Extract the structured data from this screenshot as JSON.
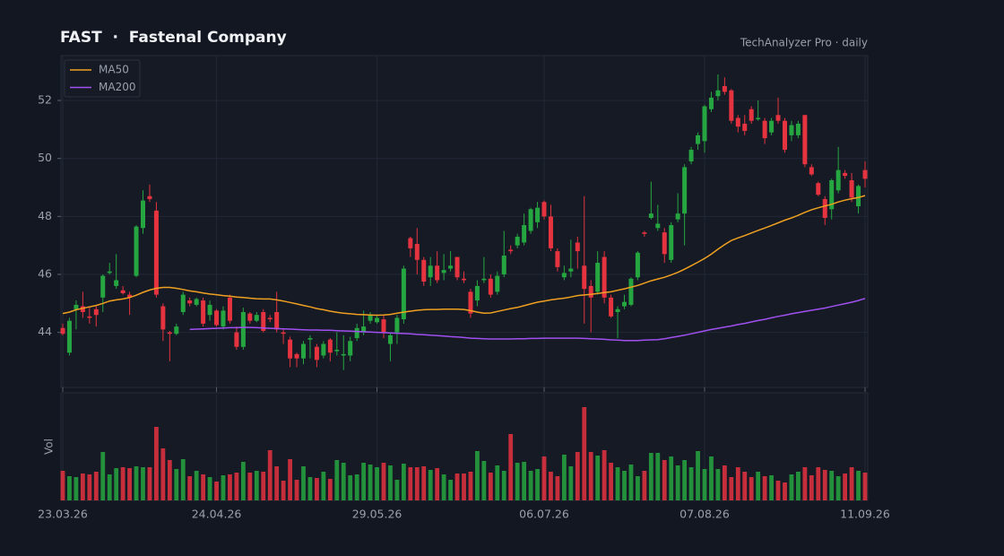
{
  "chart_data": {
    "type": "candlestick",
    "title": "FAST  ·  Fastenal Company",
    "subtitle": "TechAnalyzer Pro · daily",
    "categories": [
      "23.03.26",
      null,
      null,
      null,
      null,
      null,
      null,
      null,
      null,
      null,
      null,
      null,
      null,
      null,
      null,
      null,
      null,
      null,
      null,
      null,
      null,
      null,
      null,
      "24.04.26",
      null,
      null,
      null,
      null,
      null,
      null,
      null,
      null,
      null,
      null,
      null,
      null,
      null,
      null,
      null,
      null,
      null,
      null,
      null,
      null,
      null,
      null,
      null,
      "29.05.26",
      null,
      null,
      null,
      null,
      null,
      null,
      null,
      null,
      null,
      null,
      null,
      null,
      null,
      null,
      null,
      null,
      null,
      null,
      null,
      null,
      null,
      null,
      null,
      null,
      "06.07.26",
      null,
      null,
      null,
      null,
      null,
      null,
      null,
      null,
      null,
      null,
      null,
      null,
      null,
      null,
      null,
      null,
      null,
      null,
      null,
      null,
      null,
      null,
      null,
      "07.08.26",
      null,
      null,
      null,
      null,
      null,
      null,
      null,
      null,
      null,
      null,
      null,
      null,
      null,
      null,
      null,
      null,
      null,
      null,
      null,
      null,
      null,
      null,
      null,
      "11.09.26"
    ],
    "ohlc": [
      [
        44.15,
        44.3,
        43.9,
        43.95
      ],
      [
        43.3,
        44.5,
        43.2,
        44.4
      ],
      [
        44.8,
        45.1,
        44.1,
        44.95
      ],
      [
        44.9,
        45.4,
        44.5,
        44.7
      ],
      [
        44.55,
        44.9,
        44.3,
        44.5
      ],
      [
        44.8,
        44.9,
        44.2,
        44.6
      ],
      [
        45.2,
        46.0,
        44.7,
        45.95
      ],
      [
        46.05,
        46.4,
        46.0,
        46.1
      ],
      [
        45.6,
        46.7,
        45.5,
        45.8
      ],
      [
        45.45,
        45.6,
        45.3,
        45.35
      ],
      [
        45.3,
        45.4,
        44.6,
        45.2
      ],
      [
        45.95,
        47.7,
        45.9,
        47.65
      ],
      [
        47.6,
        48.9,
        47.4,
        48.55
      ],
      [
        48.7,
        49.1,
        48.5,
        48.6
      ],
      [
        48.2,
        48.5,
        45.2,
        45.3
      ],
      [
        44.9,
        45.0,
        43.7,
        44.1
      ],
      [
        44.0,
        44.05,
        43.0,
        43.95
      ],
      [
        43.95,
        44.3,
        43.9,
        44.2
      ],
      [
        44.7,
        45.4,
        44.6,
        45.3
      ],
      [
        45.1,
        45.2,
        44.9,
        45.0
      ],
      [
        44.95,
        45.2,
        44.9,
        45.15
      ],
      [
        45.1,
        45.2,
        44.2,
        44.3
      ],
      [
        44.6,
        45.1,
        44.4,
        44.95
      ],
      [
        44.75,
        44.8,
        44.2,
        44.25
      ],
      [
        44.2,
        44.9,
        44.1,
        44.75
      ],
      [
        45.2,
        45.3,
        44.3,
        44.4
      ],
      [
        44.0,
        44.2,
        43.4,
        43.5
      ],
      [
        43.5,
        44.85,
        43.4,
        44.7
      ],
      [
        44.65,
        44.7,
        44.3,
        44.4
      ],
      [
        44.4,
        44.7,
        44.35,
        44.6
      ],
      [
        44.7,
        44.8,
        44.0,
        44.05
      ],
      [
        44.5,
        44.6,
        44.35,
        44.45
      ],
      [
        44.7,
        45.4,
        44.0,
        44.1
      ],
      [
        44.0,
        44.1,
        43.6,
        43.95
      ],
      [
        43.75,
        43.85,
        42.8,
        43.1
      ],
      [
        43.25,
        43.3,
        42.8,
        43.1
      ],
      [
        43.1,
        43.7,
        42.9,
        43.6
      ],
      [
        43.75,
        43.9,
        43.1,
        43.8
      ],
      [
        43.5,
        43.6,
        42.8,
        43.05
      ],
      [
        43.2,
        43.7,
        43.1,
        43.6
      ],
      [
        43.75,
        43.8,
        43.0,
        43.3
      ],
      [
        43.35,
        44.0,
        43.2,
        43.4
      ],
      [
        43.2,
        43.9,
        42.7,
        43.25
      ],
      [
        43.2,
        43.85,
        43.0,
        43.7
      ],
      [
        43.8,
        44.3,
        43.7,
        44.15
      ],
      [
        44.0,
        44.75,
        43.9,
        44.2
      ],
      [
        44.4,
        44.7,
        44.3,
        44.6
      ],
      [
        44.35,
        44.6,
        44.3,
        44.5
      ],
      [
        44.45,
        44.6,
        43.8,
        44.0
      ],
      [
        43.6,
        44.0,
        43.0,
        43.9
      ],
      [
        44.0,
        44.6,
        43.6,
        44.5
      ],
      [
        44.45,
        46.3,
        44.3,
        46.2
      ],
      [
        47.25,
        47.3,
        46.6,
        46.9
      ],
      [
        47.05,
        47.6,
        46.0,
        46.5
      ],
      [
        46.5,
        46.6,
        45.6,
        45.75
      ],
      [
        45.9,
        46.6,
        45.6,
        46.3
      ],
      [
        46.3,
        46.8,
        45.7,
        45.8
      ],
      [
        46.05,
        46.7,
        45.8,
        46.15
      ],
      [
        46.2,
        46.8,
        46.1,
        46.3
      ],
      [
        46.6,
        46.6,
        45.8,
        45.9
      ],
      [
        45.85,
        46.1,
        45.7,
        45.8
      ],
      [
        45.4,
        45.5,
        44.5,
        44.65
      ],
      [
        45.1,
        45.8,
        44.9,
        45.6
      ],
      [
        45.8,
        46.6,
        45.7,
        45.85
      ],
      [
        45.85,
        46.0,
        45.2,
        45.3
      ],
      [
        45.4,
        46.1,
        45.3,
        45.95
      ],
      [
        46.0,
        47.5,
        45.9,
        46.65
      ],
      [
        46.85,
        47.0,
        46.7,
        46.8
      ],
      [
        47.0,
        47.4,
        46.9,
        47.3
      ],
      [
        47.1,
        48.1,
        47.0,
        47.7
      ],
      [
        47.5,
        48.3,
        47.4,
        48.25
      ],
      [
        47.8,
        48.5,
        47.6,
        48.3
      ],
      [
        48.5,
        48.55,
        47.9,
        48.0
      ],
      [
        48.0,
        48.4,
        46.8,
        46.9
      ],
      [
        46.8,
        46.9,
        46.1,
        46.25
      ],
      [
        45.9,
        46.3,
        45.8,
        46.05
      ],
      [
        46.1,
        47.2,
        45.9,
        46.2
      ],
      [
        47.1,
        47.3,
        46.2,
        46.8
      ],
      [
        46.3,
        48.7,
        44.3,
        45.5
      ],
      [
        45.6,
        45.8,
        44.0,
        45.2
      ],
      [
        45.4,
        46.8,
        45.3,
        46.4
      ],
      [
        46.6,
        46.8,
        45.0,
        45.2
      ],
      [
        45.2,
        45.3,
        44.5,
        44.55
      ],
      [
        44.7,
        44.9,
        43.8,
        44.8
      ],
      [
        44.9,
        45.3,
        44.8,
        45.05
      ],
      [
        44.95,
        45.9,
        44.9,
        45.85
      ],
      [
        45.9,
        46.8,
        45.8,
        46.75
      ],
      [
        47.45,
        47.5,
        47.3,
        47.4
      ],
      [
        47.95,
        49.2,
        47.9,
        48.1
      ],
      [
        47.6,
        48.4,
        47.5,
        47.75
      ],
      [
        47.45,
        47.6,
        46.4,
        46.7
      ],
      [
        46.5,
        47.8,
        46.4,
        47.7
      ],
      [
        47.9,
        48.8,
        47.8,
        48.1
      ],
      [
        48.1,
        49.8,
        47.0,
        49.7
      ],
      [
        49.9,
        50.4,
        49.8,
        50.3
      ],
      [
        50.5,
        50.9,
        50.3,
        50.8
      ],
      [
        50.6,
        51.85,
        50.2,
        51.8
      ],
      [
        51.7,
        52.3,
        51.6,
        52.1
      ],
      [
        52.15,
        52.9,
        52.0,
        52.35
      ],
      [
        52.5,
        52.8,
        52.2,
        52.3
      ],
      [
        52.35,
        52.4,
        51.2,
        51.3
      ],
      [
        51.4,
        51.5,
        50.9,
        51.1
      ],
      [
        51.2,
        51.5,
        50.8,
        50.95
      ],
      [
        51.7,
        51.8,
        51.2,
        51.3
      ],
      [
        51.35,
        52.0,
        51.3,
        51.4
      ],
      [
        51.3,
        51.4,
        50.5,
        50.7
      ],
      [
        50.9,
        51.4,
        50.8,
        51.3
      ],
      [
        51.5,
        52.1,
        51.2,
        51.3
      ],
      [
        51.3,
        51.4,
        50.2,
        50.3
      ],
      [
        50.8,
        51.3,
        50.6,
        51.15
      ],
      [
        50.8,
        51.3,
        50.7,
        51.2
      ],
      [
        51.5,
        51.5,
        49.7,
        49.8
      ],
      [
        49.7,
        49.8,
        49.4,
        49.45
      ],
      [
        49.15,
        49.2,
        48.7,
        48.75
      ],
      [
        48.6,
        48.7,
        47.7,
        47.95
      ],
      [
        48.25,
        49.3,
        47.9,
        49.25
      ],
      [
        48.9,
        50.4,
        48.8,
        49.6
      ],
      [
        49.5,
        49.6,
        49.3,
        49.4
      ],
      [
        49.25,
        49.5,
        48.5,
        48.65
      ],
      [
        48.35,
        49.1,
        48.1,
        49.05
      ],
      [
        49.6,
        49.9,
        49.0,
        49.3
      ]
    ],
    "up_color": "#26a641",
    "down_color": "#e5333f",
    "ylim": [
      42.1,
      53.55
    ],
    "yticks": [
      44,
      46,
      48,
      50,
      52
    ],
    "grid": true,
    "legend": "upper left",
    "series": [
      {
        "name": "MA50",
        "color": "#f0a020",
        "values": [
          44.65,
          44.7,
          44.78,
          44.83,
          44.88,
          44.93,
          45.0,
          45.08,
          45.12,
          45.15,
          45.2,
          45.28,
          45.38,
          45.46,
          45.52,
          45.55,
          45.55,
          45.52,
          45.48,
          45.43,
          45.4,
          45.36,
          45.32,
          45.3,
          45.27,
          45.25,
          45.22,
          45.2,
          45.18,
          45.16,
          45.15,
          45.15,
          45.12,
          45.08,
          45.03,
          44.98,
          44.93,
          44.88,
          44.82,
          44.78,
          44.73,
          44.69,
          44.66,
          44.64,
          44.62,
          44.61,
          44.6,
          44.59,
          44.6,
          44.62,
          44.66,
          44.7,
          44.73,
          44.76,
          44.78,
          44.79,
          44.79,
          44.8,
          44.8,
          44.8,
          44.79,
          44.75,
          44.7,
          44.66,
          44.67,
          44.72,
          44.77,
          44.82,
          44.86,
          44.92,
          44.98,
          45.04,
          45.08,
          45.12,
          45.15,
          45.18,
          45.22,
          45.27,
          45.29,
          45.31,
          45.34,
          45.37,
          45.4,
          45.45,
          45.5,
          45.56,
          45.62,
          45.7,
          45.78,
          45.84,
          45.9,
          45.98,
          46.07,
          46.18,
          46.3,
          46.42,
          46.55,
          46.7,
          46.87,
          47.03,
          47.17,
          47.26,
          47.34,
          47.43,
          47.52,
          47.6,
          47.69,
          47.78,
          47.87,
          47.95,
          48.04,
          48.14,
          48.23,
          48.3,
          48.36,
          48.42,
          48.5,
          48.56,
          48.61,
          48.65,
          48.72
        ]
      },
      {
        "name": "MA200",
        "color": "#a050f0",
        "values": [
          null,
          null,
          null,
          null,
          null,
          null,
          null,
          null,
          null,
          null,
          null,
          null,
          null,
          null,
          null,
          null,
          null,
          null,
          null,
          44.1,
          44.11,
          44.12,
          44.13,
          44.14,
          44.15,
          44.16,
          44.16,
          44.17,
          44.17,
          44.16,
          44.15,
          44.14,
          44.13,
          44.12,
          44.11,
          44.1,
          44.09,
          44.08,
          44.08,
          44.07,
          44.07,
          44.06,
          44.05,
          44.04,
          44.03,
          44.02,
          44.01,
          44.0,
          43.99,
          43.98,
          43.97,
          43.96,
          43.95,
          43.93,
          43.92,
          43.9,
          43.89,
          43.87,
          43.85,
          43.84,
          43.82,
          43.8,
          43.79,
          43.78,
          43.77,
          43.77,
          43.77,
          43.77,
          43.78,
          43.78,
          43.79,
          43.79,
          43.8,
          43.8,
          43.8,
          43.8,
          43.8,
          43.8,
          43.79,
          43.78,
          43.77,
          43.76,
          43.74,
          43.73,
          43.72,
          43.72,
          43.72,
          43.73,
          43.74,
          43.75,
          43.78,
          43.82,
          43.86,
          43.9,
          43.95,
          44.0,
          44.05,
          44.1,
          44.14,
          44.18,
          44.22,
          44.27,
          44.31,
          44.36,
          44.41,
          44.45,
          44.5,
          44.55,
          44.59,
          44.64,
          44.68,
          44.72,
          44.76,
          44.8,
          44.84,
          44.89,
          44.94,
          44.99,
          45.04,
          45.1,
          45.17
        ]
      }
    ],
    "volume": {
      "label": "Vol",
      "ylim": [
        0,
        11.8
      ],
      "values": [
        3.3,
        2.7,
        2.6,
        3.0,
        2.9,
        3.2,
        5.4,
        2.9,
        3.6,
        3.7,
        3.6,
        3.8,
        3.7,
        3.7,
        8.2,
        5.8,
        4.5,
        3.5,
        4.6,
        2.7,
        3.3,
        2.9,
        2.6,
        2.1,
        2.8,
        2.9,
        3.1,
        4.3,
        3.1,
        3.3,
        3.2,
        5.6,
        3.8,
        2.2,
        4.6,
        2.3,
        3.8,
        2.6,
        2.5,
        3.2,
        2.4,
        4.5,
        4.2,
        2.8,
        2.9,
        4.2,
        4.0,
        3.7,
        4.2,
        3.9,
        2.3,
        4.1,
        3.7,
        3.7,
        3.8,
        3.4,
        3.6,
        2.9,
        2.3,
        3.0,
        3.0,
        3.2,
        5.5,
        4.4,
        3.1,
        3.9,
        3.3,
        7.4,
        4.2,
        4.3,
        3.3,
        3.5,
        4.9,
        3.2,
        2.7,
        5.1,
        3.8,
        5.4,
        10.4,
        5.4,
        5.0,
        5.6,
        4.2,
        3.7,
        3.3,
        4.0,
        2.7,
        3.3,
        5.3,
        5.3,
        4.5,
        4.9,
        3.9,
        4.5,
        3.7,
        5.5,
        3.5,
        4.9,
        3.5,
        3.9,
        2.6,
        3.7,
        3.2,
        2.6,
        3.2,
        2.7,
        2.8,
        2.2,
        2.0,
        2.9,
        3.2,
        3.7,
        2.8,
        3.7,
        3.4,
        3.3,
        2.7,
        3.0,
        3.7,
        3.3,
        3.1
      ]
    }
  }
}
